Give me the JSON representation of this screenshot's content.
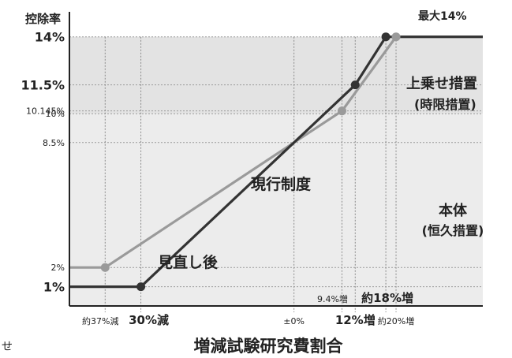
{
  "chart_data": {
    "type": "line",
    "ylabel": "控除率",
    "xlabel": "増減試験研究費割合",
    "corner_label": "せ",
    "y_ticks": [
      {
        "value": 14,
        "label": "14%",
        "weight": "bold"
      },
      {
        "value": 11.5,
        "label": "11.5%",
        "weight": "bold"
      },
      {
        "value": 10.145,
        "label": "10.145%",
        "weight": "normal"
      },
      {
        "value": 10,
        "label": "10%",
        "weight": "normal"
      },
      {
        "value": 8.5,
        "label": "8.5%",
        "weight": "normal"
      },
      {
        "value": 2,
        "label": "2%",
        "weight": "normal"
      },
      {
        "value": 1,
        "label": "1%",
        "weight": "bold"
      }
    ],
    "x_ticks": [
      {
        "value": -37,
        "label": "約37%減",
        "weight": "normal"
      },
      {
        "value": -30,
        "label": "30%減",
        "weight": "bold"
      },
      {
        "value": 0,
        "label": "±0%",
        "weight": "normal"
      },
      {
        "value": 12,
        "label": "12%増",
        "weight": "bold"
      },
      {
        "value": 20,
        "label": "約20%増",
        "weight": "normal"
      }
    ],
    "inner_x_labels": [
      {
        "value": 9.4,
        "label": "9.4%増",
        "weight": "normal"
      },
      {
        "value": 18,
        "label": "約18%増",
        "weight": "bold"
      }
    ],
    "xlim": [
      -44,
      37
    ],
    "ylim": [
      0,
      15.3
    ],
    "series": [
      {
        "name": "現行制度",
        "color": "#9a9a9a",
        "x": [
          -44,
          -37,
          0,
          9.4,
          20,
          37
        ],
        "y": [
          2,
          2,
          8.5,
          10.145,
          14,
          14
        ]
      },
      {
        "name": "見直し後",
        "color": "#333333",
        "x": [
          -44,
          -30,
          0,
          12,
          18,
          37
        ],
        "y": [
          1,
          1,
          8.5,
          11.5,
          14,
          14
        ]
      }
    ],
    "markers": [
      {
        "series": 0,
        "x": -37,
        "y": 2
      },
      {
        "series": 0,
        "x": 9.4,
        "y": 10.145
      },
      {
        "series": 0,
        "x": 20,
        "y": 14
      },
      {
        "series": 1,
        "x": -30,
        "y": 1
      },
      {
        "series": 1,
        "x": 12,
        "y": 11.5
      },
      {
        "series": 1,
        "x": 18,
        "y": 14
      }
    ],
    "annotations": {
      "max": "最大14%",
      "upper_band_line1": "上乗せ措置",
      "upper_band_line2": "(時限措置)",
      "lower_band_line1": "本体",
      "lower_band_line2": "(恒久措置)"
    },
    "bands": {
      "upper_color": "#e3e3e3",
      "lower_color": "#ececec",
      "boundary": 10
    }
  }
}
